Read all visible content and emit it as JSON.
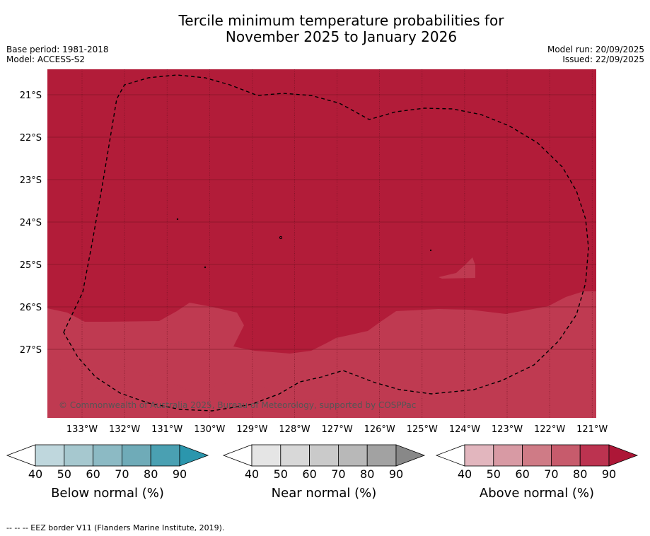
{
  "title": {
    "line1": "Tercile minimum temperature probabilities for",
    "line2": "November 2025 to January 2026"
  },
  "meta": {
    "base_period": "Base period: 1981-2018",
    "model": "Model: ACCESS-S2",
    "model_run": "Model run: 20/09/2025",
    "issued": "Issued: 22/09/2025"
  },
  "map": {
    "lat_labels": [
      "21°S",
      "22°S",
      "23°S",
      "24°S",
      "25°S",
      "26°S",
      "27°S"
    ],
    "lon_labels": [
      "133°W",
      "132°W",
      "131°W",
      "130°W",
      "129°W",
      "128°W",
      "127°W",
      "126°W",
      "125°W",
      "124°W",
      "123°W",
      "122°W",
      "121°W"
    ],
    "copyright": "© Commonwealth of Australia 2025, Bureau of Meteorology, supported by COSPPac",
    "colors": {
      "above_80_90": "#b21c39",
      "above_70_80": "#bf3a51"
    }
  },
  "colorbars": [
    {
      "name": "below",
      "title": "Below normal (%)",
      "ticks": [
        "40",
        "50",
        "60",
        "70",
        "80",
        "90"
      ],
      "colors": [
        "#bfd7dd",
        "#a6c8cf",
        "#8cbac4",
        "#6fabb8",
        "#4aa0b2",
        "#2b96ad"
      ]
    },
    {
      "name": "near",
      "title": "Near normal (%)",
      "ticks": [
        "40",
        "50",
        "60",
        "70",
        "80",
        "90"
      ],
      "colors": [
        "#e5e5e5",
        "#d8d8d8",
        "#cacaca",
        "#b8b8b8",
        "#a2a2a2",
        "#888888"
      ]
    },
    {
      "name": "above",
      "title": "Above normal (%)",
      "ticks": [
        "40",
        "50",
        "60",
        "70",
        "80",
        "90"
      ],
      "colors": [
        "#e2b6be",
        "#d89aa4",
        "#cf7b86",
        "#c75b6c",
        "#bc3350",
        "#ad1737"
      ]
    }
  ],
  "footer": {
    "eez_legend": "-- -- -- EEZ border V11 (Flanders Marine Institute, 2019)."
  }
}
